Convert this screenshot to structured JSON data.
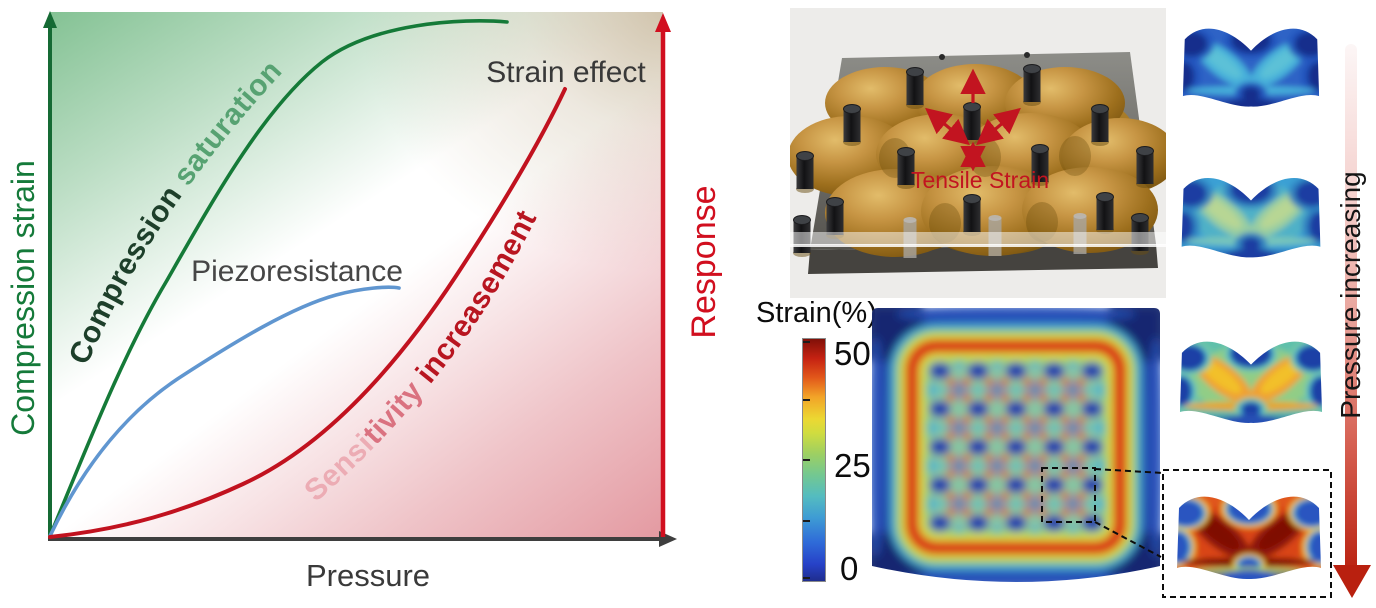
{
  "chart_data": {
    "type": "line",
    "title": "",
    "xlabel": "Pressure",
    "ylabel_left": "Compression strain",
    "ylabel_right": "Response",
    "axes_note": "schematic concept plot, no numeric ticks",
    "series": [
      {
        "name": "Compression saturation",
        "color": "#157a38",
        "shape": "saturating",
        "points_norm": [
          [
            0,
            0
          ],
          [
            0.1,
            0.26
          ],
          [
            0.19,
            0.47
          ],
          [
            0.3,
            0.66
          ],
          [
            0.44,
            0.85
          ],
          [
            0.58,
            0.94
          ],
          [
            0.75,
            0.98
          ]
        ]
      },
      {
        "name": "Piezoresistance",
        "color": "#6096d0",
        "shape": "saturating",
        "points_norm": [
          [
            0,
            0
          ],
          [
            0.1,
            0.15
          ],
          [
            0.22,
            0.3
          ],
          [
            0.35,
            0.4
          ],
          [
            0.47,
            0.46
          ],
          [
            0.57,
            0.475
          ]
        ]
      },
      {
        "name": "Strain effect / Sensitivity increasement",
        "color": "#c1121f",
        "shape": "accelerating",
        "points_norm": [
          [
            0,
            0
          ],
          [
            0.21,
            0.055
          ],
          [
            0.41,
            0.18
          ],
          [
            0.58,
            0.4
          ],
          [
            0.67,
            0.5
          ],
          [
            0.77,
            0.68
          ],
          [
            0.84,
            0.86
          ]
        ]
      }
    ],
    "annotations": [
      "Compression saturation",
      "Piezoresistance",
      "Strain effect",
      "Sensitivity increasement"
    ]
  },
  "left_chart": {
    "xlabel": "Pressure",
    "ylabel_left": "Compression strain",
    "ylabel_right": "Response",
    "labels": {
      "strain_effect": "Strain effect",
      "piezoresistance": "Piezoresistance",
      "compression_saturation": [
        "Compression ",
        "saturation"
      ],
      "sensitivity_increasement": [
        "Sensi",
        "tivity ",
        "increasement"
      ]
    },
    "colors": {
      "green_curve": "#157a38",
      "blue_curve": "#6096d0",
      "red_curve": "#c1121f",
      "x_axis": "#3e3e3e",
      "y_axis_left": "#156a34",
      "y_axis_right": "#d10f1f",
      "bg_green": "#84c294",
      "bg_pink": "#e2949c",
      "bg_beige": "#ccbea4",
      "label_dark_green": "#1d3f2a",
      "label_light_green": "#57a272",
      "label_pink": "#ecacb4",
      "label_mid_red": "#da7280",
      "label_deep_red": "#b81520"
    }
  },
  "photo": {
    "annotation": "Tensile Strain",
    "annotation_color": "#c21420",
    "description": "3D render of golden egg-crate elastomer with black pillar array on gray plate"
  },
  "colorbar": {
    "title": "Strain(%)",
    "tick_labels": [
      "50",
      "25",
      "0"
    ],
    "max": 50,
    "mid": 25,
    "min": 0
  },
  "pressure_arrow": {
    "label": "Pressure increasing"
  },
  "heatmap": {
    "description": "top-view FEM strain map, jet colormap, 0-50%",
    "palette": {
      "bg": "#22419e",
      "corner": "#14266c",
      "edgeGlow": "#2a5ac8",
      "ringCyan": "#3fa8d8",
      "ringGreen": "#8fd05a",
      "ringYellow": "#e2e23a",
      "ringRed": "#d92c12",
      "field": "#68c0b8",
      "lattice": "#d8381a",
      "nodeHalo": "#bcdc62",
      "node": "#2a50c0",
      "nodeCore": "#18349a",
      "dotHalo": "#52b8d0",
      "dot": "#18349a"
    }
  },
  "sim_images": [
    {
      "name": "cross-section-pressure-1",
      "pressure_level": 1,
      "palette": {
        "base": "#2d63c6",
        "ambient": "#2d63c6",
        "streak": "#47b0da",
        "core": "#60c4d6",
        "blob": "#142e8c",
        "halo": "#2253bd",
        "halo2": null,
        "bstreak": "#47b0da",
        "bband": "#142e8c",
        "bglow": null
      }
    },
    {
      "name": "cross-section-pressure-2",
      "pressure_level": 2,
      "palette": {
        "base": "#3aa0d4",
        "ambient": "#50b2c6",
        "streak": "#98cda2",
        "core": "#bcd792",
        "blob": "#1b3da2",
        "halo": "#2e7ec0",
        "halo2": null,
        "bstreak": "#79c6ba",
        "bband": "#1b3da2",
        "bglow": null
      }
    },
    {
      "name": "cross-section-pressure-3",
      "pressure_level": 3,
      "palette": {
        "base": "#5fc0aa",
        "ambient": "#93cd84",
        "streak": "#f0a030",
        "core": "#f2c62c",
        "blob": "#1e40a6",
        "halo": "#7ecba0",
        "halo2": "#3fb2d2",
        "bstreak": "#e8a428",
        "bband": "#2750b4",
        "bglow": null
      }
    },
    {
      "name": "cross-section-pressure-4-inset",
      "pressure_level": 4,
      "palette": {
        "base": "#e0561c",
        "ambient": "#d84414",
        "streak": "#8e1408",
        "core": "#7c1006",
        "blob": "#2a55c0",
        "halo": "#eec832",
        "halo2": "#44b4d4",
        "bstreak": "#7e1206",
        "bband": "#2a55c0",
        "bglow": "#a8d060"
      }
    }
  ]
}
